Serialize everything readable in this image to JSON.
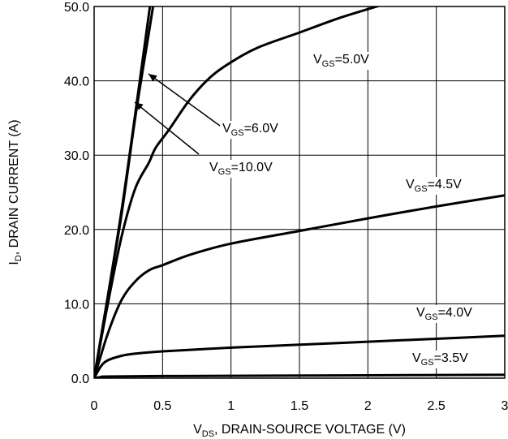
{
  "chart_data": {
    "type": "line",
    "title": "",
    "xlabel": {
      "main": "V",
      "sub": "DS",
      "rest": ", DRAIN-SOURCE VOLTAGE (V)"
    },
    "ylabel": {
      "main": "I",
      "sub": "D",
      "rest": ", DRAIN CURRENT (A)"
    },
    "xlim": [
      0,
      3
    ],
    "ylim": [
      0,
      50
    ],
    "grid": true,
    "x_ticks": [
      "0",
      "0.5",
      "1",
      "1.5",
      "2",
      "2.5",
      "3"
    ],
    "y_ticks": [
      "0.0",
      "10.0",
      "20.0",
      "30.0",
      "40.0",
      "50.0"
    ],
    "series": [
      {
        "label": {
          "main": "V",
          "sub": "GS",
          "rest": "=10.0V"
        },
        "points": [
          [
            0,
            0
          ],
          [
            0.1,
            11
          ],
          [
            0.2,
            22
          ],
          [
            0.3,
            35
          ],
          [
            0.4,
            46.5
          ],
          [
            0.5,
            58
          ]
        ]
      },
      {
        "label": {
          "main": "V",
          "sub": "GS",
          "rest": "=6.0V"
        },
        "points": [
          [
            0,
            0
          ],
          [
            0.1,
            11
          ],
          [
            0.2,
            22.5
          ],
          [
            0.3,
            35.5
          ],
          [
            0.4,
            49
          ],
          [
            0.41,
            50.2
          ]
        ]
      },
      {
        "label": {
          "main": "V",
          "sub": "GS",
          "rest": "=5.0V"
        },
        "points": [
          [
            0,
            0
          ],
          [
            0.1,
            10
          ],
          [
            0.2,
            19
          ],
          [
            0.3,
            25.5
          ],
          [
            0.4,
            29
          ],
          [
            0.45,
            31
          ],
          [
            0.55,
            33.5
          ],
          [
            0.7,
            37.5
          ],
          [
            0.85,
            40.5
          ],
          [
            1.0,
            42.5
          ],
          [
            1.2,
            44.5
          ],
          [
            1.5,
            46.5
          ],
          [
            1.8,
            48.5
          ],
          [
            2.1,
            50.2
          ]
        ]
      },
      {
        "label": {
          "main": "V",
          "sub": "GS",
          "rest": "=4.5V"
        },
        "points": [
          [
            0,
            0
          ],
          [
            0.1,
            6
          ],
          [
            0.2,
            10.5
          ],
          [
            0.3,
            13
          ],
          [
            0.4,
            14.5
          ],
          [
            0.5,
            15.2
          ],
          [
            0.7,
            16.6
          ],
          [
            1.0,
            18.1
          ],
          [
            1.5,
            19.8
          ],
          [
            2.0,
            21.5
          ],
          [
            2.5,
            23.1
          ],
          [
            3.0,
            24.6
          ]
        ]
      },
      {
        "label": {
          "main": "V",
          "sub": "GS",
          "rest": "=4.0V"
        },
        "points": [
          [
            0,
            0
          ],
          [
            0.05,
            1.6
          ],
          [
            0.1,
            2.4
          ],
          [
            0.2,
            3.0
          ],
          [
            0.3,
            3.3
          ],
          [
            0.5,
            3.6
          ],
          [
            1.0,
            4.1
          ],
          [
            1.5,
            4.5
          ],
          [
            2.0,
            4.9
          ],
          [
            2.5,
            5.3
          ],
          [
            3.0,
            5.7
          ]
        ]
      },
      {
        "label": {
          "main": "V",
          "sub": "GS",
          "rest": "=3.5V"
        },
        "points": [
          [
            0,
            0
          ],
          [
            0.05,
            0.15
          ],
          [
            0.1,
            0.22
          ],
          [
            0.5,
            0.28
          ],
          [
            1.0,
            0.32
          ],
          [
            2.0,
            0.38
          ],
          [
            3.0,
            0.45
          ]
        ]
      }
    ]
  }
}
